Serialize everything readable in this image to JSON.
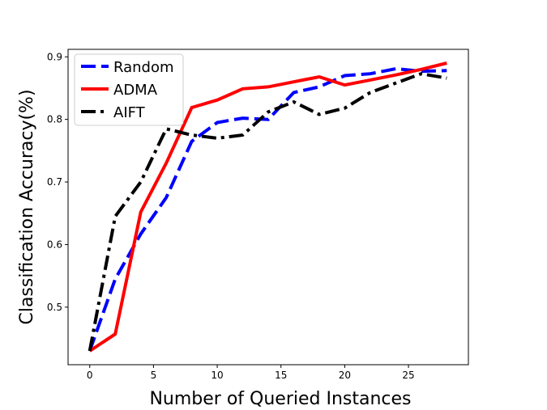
{
  "chart_data": {
    "type": "line",
    "title": "",
    "xlabel": "Number of Queried Instances",
    "ylabel": "Classification Accuracy(%)",
    "xlim": [
      -1.7,
      29.7
    ],
    "ylim": [
      0.408,
      0.912
    ],
    "xticks": [
      0,
      5,
      10,
      15,
      20,
      25
    ],
    "yticks": [
      0.5,
      0.6,
      0.7,
      0.8,
      0.9
    ],
    "grid": false,
    "legend_position": "top-left",
    "series": [
      {
        "name": "Random",
        "color": "#0000ff",
        "dash": "dashed",
        "x": [
          0,
          2,
          4,
          6,
          8,
          10,
          12,
          14,
          16,
          18,
          20,
          22,
          24,
          26,
          28
        ],
        "y": [
          0.43,
          0.545,
          0.617,
          0.675,
          0.765,
          0.795,
          0.802,
          0.8,
          0.843,
          0.852,
          0.87,
          0.873,
          0.881,
          0.877,
          0.878
        ]
      },
      {
        "name": "ADMA",
        "color": "#ff0000",
        "dash": "solid",
        "x": [
          0,
          2,
          4,
          6,
          8,
          10,
          12,
          14,
          16,
          18,
          20,
          22,
          24,
          26,
          28
        ],
        "y": [
          0.43,
          0.457,
          0.652,
          0.73,
          0.819,
          0.831,
          0.849,
          0.852,
          0.86,
          0.868,
          0.855,
          0.863,
          0.871,
          0.88,
          0.89
        ]
      },
      {
        "name": "AIFT",
        "color": "#000000",
        "dash": "dashdot",
        "x": [
          0,
          2,
          4,
          6,
          8,
          10,
          12,
          14,
          16,
          18,
          20,
          22,
          24,
          26,
          28
        ],
        "y": [
          0.43,
          0.645,
          0.7,
          0.785,
          0.775,
          0.77,
          0.775,
          0.812,
          0.828,
          0.808,
          0.818,
          0.843,
          0.858,
          0.873,
          0.866
        ]
      }
    ]
  }
}
